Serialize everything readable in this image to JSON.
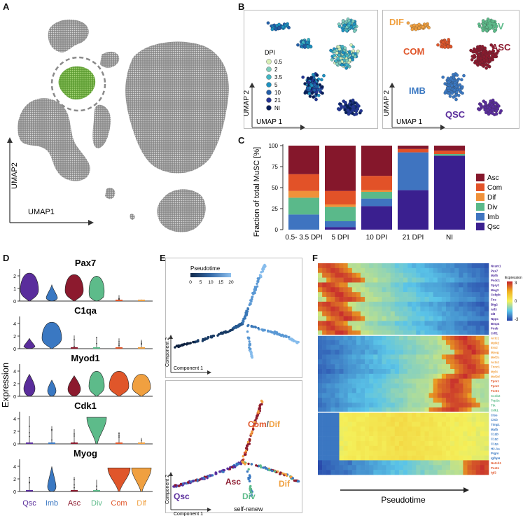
{
  "panel_labels": {
    "a": "A",
    "b": "B",
    "c": "C",
    "d": "D",
    "e": "E",
    "f": "F"
  },
  "panel_a": {
    "xlabel": "UMAP1",
    "ylabel": "UMAP2",
    "highlight_color": "#7ab648",
    "cell_color": "#7a7a7a"
  },
  "panel_b": {
    "xlabel": "UMAP 1",
    "ylabel": "UMAP 2",
    "legend_title": "DPI",
    "dpi_legend": [
      {
        "label": "0.5",
        "color": "#d8efb6"
      },
      {
        "label": "2",
        "color": "#7fcdbb"
      },
      {
        "label": "3.5",
        "color": "#41b6c4"
      },
      {
        "label": "5",
        "color": "#1d91c0"
      },
      {
        "label": "10",
        "color": "#225ea8"
      },
      {
        "label": "21",
        "color": "#253494"
      },
      {
        "label": "NI",
        "color": "#081d58"
      }
    ],
    "clusters": [
      {
        "label": "DIF",
        "color": "#f0a040"
      },
      {
        "label": "DIV",
        "color": "#5dbb8a"
      },
      {
        "label": "COM",
        "color": "#e0562a"
      },
      {
        "label": "ASC",
        "color": "#8c1a2e"
      },
      {
        "label": "IMB",
        "color": "#3a78c2"
      },
      {
        "label": "QSC",
        "color": "#5a2d9c"
      }
    ]
  },
  "chart_data": {
    "type": "bar",
    "stacked": true,
    "title": "",
    "xlabel": "",
    "ylabel": "Fraction of total MuSC [%]",
    "ylim": [
      0,
      100
    ],
    "yticks": [
      "0",
      "25",
      "50",
      "75",
      "100"
    ],
    "categories": [
      "0.5- 3.5 DPI",
      "5 DPI",
      "10 DPI",
      "21 DPI",
      "NI"
    ],
    "series": [
      {
        "name": "Qsc",
        "color": "#3a1f8f",
        "values": [
          0,
          3,
          28,
          47,
          88
        ]
      },
      {
        "name": "Imb",
        "color": "#3f74c0",
        "values": [
          18,
          7,
          9,
          45,
          0
        ]
      },
      {
        "name": "Div",
        "color": "#5ab98a",
        "values": [
          20,
          17,
          8,
          0,
          2
        ]
      },
      {
        "name": "Dif",
        "color": "#f0913a",
        "values": [
          8,
          3,
          2,
          0,
          0
        ]
      },
      {
        "name": "Com",
        "color": "#e25228",
        "values": [
          20,
          16,
          17,
          4,
          4
        ]
      },
      {
        "name": "Asc",
        "color": "#85172b",
        "values": [
          34,
          54,
          36,
          4,
          6
        ]
      }
    ]
  },
  "panel_d": {
    "ylabel": "Expression",
    "genes": [
      "Pax7",
      "C1qa",
      "Myod1",
      "Cdk1",
      "Myog"
    ],
    "groups": [
      {
        "label": "Qsc",
        "color": "#5a2d9c"
      },
      {
        "label": "Imb",
        "color": "#3a78c2"
      },
      {
        "label": "Asc",
        "color": "#8c1a2e"
      },
      {
        "label": "Div",
        "color": "#5dbb8a"
      },
      {
        "label": "Com",
        "color": "#e0562a"
      },
      {
        "label": "Dif",
        "color": "#f0a040"
      }
    ],
    "yticks": [
      [
        "0",
        "1",
        "2"
      ],
      [
        "0",
        "2",
        "4"
      ],
      [
        "0",
        "2",
        "4"
      ],
      [
        "0",
        "2",
        "4"
      ],
      [
        "0",
        "2",
        "4"
      ]
    ]
  },
  "panel_e": {
    "legend_title": "Pseudotime",
    "ticks": [
      "0",
      "5",
      "10",
      "15",
      "20"
    ],
    "xlabel": "Component 1",
    "ylabel": "Component 2",
    "lineage_labels": {
      "com_dif_com": "Com",
      "com_dif_slash": "/",
      "com_dif_dif": "Dif",
      "asc": "Asc",
      "div": "Div",
      "dif": "Dif",
      "qsc": "Qsc",
      "self_renew": "self-renew"
    }
  },
  "panel_f": {
    "xlabel": "Pseudotime",
    "legend_title": "Expression",
    "legend_ticks": [
      "3",
      "0",
      "-3"
    ],
    "gene_groups": [
      {
        "color": "#4b2a9a",
        "genes": [
          "Ncam1",
          "Pax7",
          "Myf5",
          "Psdc1",
          "Spry1",
          "Meg3",
          "Cebpb",
          "Fos",
          "Btg2",
          "Atf3",
          "Id3",
          "Nppc",
          "Bmp4",
          "Fosb",
          "Crlf1"
        ]
      },
      {
        "color": "#f0a040",
        "genes": [
          "Actc1",
          "Mylk2",
          "Ero2",
          "Myog",
          "Mef2c",
          "Acta1",
          "Tnnc1",
          "Myl4",
          "Mef2d"
        ]
      },
      {
        "color": "#e0562a",
        "genes": [
          "Tpm1",
          "Tpm2",
          "Tnnt1"
        ]
      },
      {
        "color": "#5dbb8a",
        "genes": [
          "Ccnb2",
          "Top2a",
          "Ttk",
          "Cdk1"
        ]
      },
      {
        "color": "#3a78c2",
        "genes": [
          "Ctss",
          "Ctsb",
          "Timp1",
          "Mafb",
          "C1qb",
          "C1qc",
          "C1qa",
          "H2-Aa",
          "Prgrn",
          "Igfbp6"
        ]
      },
      {
        "color": "#e0562a",
        "genes": [
          "Notch1",
          "Postn",
          "Igf2"
        ]
      }
    ]
  }
}
